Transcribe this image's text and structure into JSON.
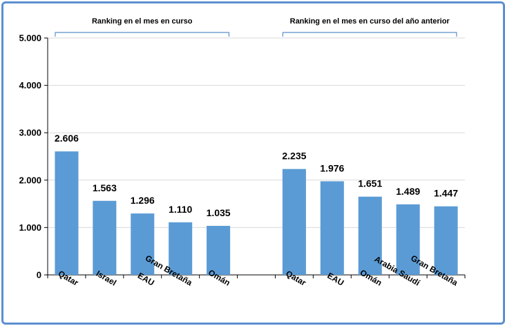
{
  "chart_data": {
    "type": "bar",
    "title": "",
    "xlabel": "",
    "ylabel": "",
    "ylim": [
      0,
      5000
    ],
    "yticks": [
      0,
      1000,
      2000,
      3000,
      4000,
      5000
    ],
    "ytick_labels": [
      "0",
      "1.000",
      "2.000",
      "3.000",
      "4.000",
      "5.000"
    ],
    "grid": true,
    "bar_color": "#5b9bd5",
    "frame_color": "#5b8fd0",
    "groups": [
      {
        "label": "Ranking en el mes en curso",
        "categories": [
          "Qatar",
          "Israel",
          "EAU",
          "Gran Bretaña",
          "Omán"
        ],
        "values": [
          2606,
          1563,
          1296,
          1110,
          1035
        ],
        "value_labels": [
          "2.606",
          "1.563",
          "1.296",
          "1.110",
          "1.035"
        ]
      },
      {
        "label": "Ranking en el mes en curso del año anterior",
        "categories": [
          "Qatar",
          "EAU",
          "Omán",
          "Arabia Saudí",
          "Gran Bretaña"
        ],
        "values": [
          2235,
          1976,
          1651,
          1489,
          1447
        ],
        "value_labels": [
          "2.235",
          "1.976",
          "1.651",
          "1.489",
          "1.447"
        ]
      }
    ]
  }
}
